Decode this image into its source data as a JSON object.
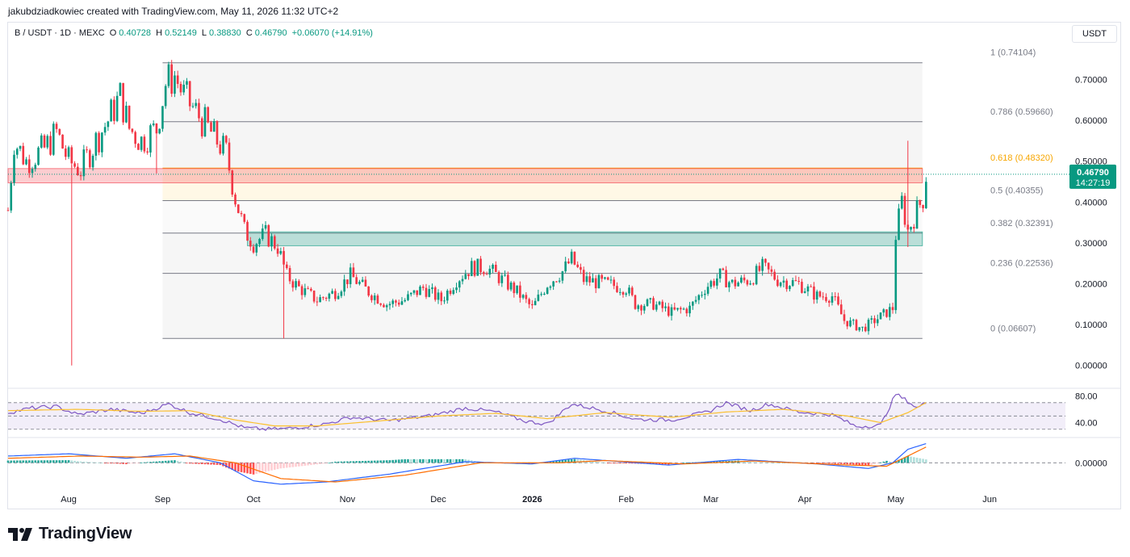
{
  "caption": "jakubdziadkowiec created with TradingView.com, May 11, 2026 11:32 UTC+2",
  "header": {
    "symbol": "B / USDT · 1D · MEXC",
    "o_label": "O",
    "o": "0.40728",
    "h_label": "H",
    "h": "0.52149",
    "l_label": "L",
    "l": "0.38830",
    "c_label": "C",
    "c": "0.46790",
    "change": "+0.06070 (+14.91%)"
  },
  "currency": "USDT",
  "brand": "TradingView",
  "colors": {
    "up": "#089981",
    "down": "#f23645",
    "rsi": "#7e57c2",
    "rsi_ma": "#fbc02d",
    "macd": "#2962ff",
    "signal": "#ff6d00",
    "fib_highlight": "#f7a600"
  },
  "chart_data": [
    {
      "type": "candlestick",
      "title": "",
      "ylim": [
        -0.05,
        0.78
      ],
      "y_ticks": [
        "0.70000",
        "0.60000",
        "0.50000",
        "0.40000",
        "0.30000",
        "0.20000",
        "0.10000",
        "0.00000"
      ],
      "y_tick_values": [
        0.7,
        0.6,
        0.5,
        0.4,
        0.3,
        0.2,
        0.1,
        0.0
      ],
      "x_labels": [
        "Aug",
        "Sep",
        "Oct",
        "Nov",
        "Dec",
        "2026",
        "Feb",
        "Mar",
        "Apr",
        "May",
        "Jun"
      ],
      "x_label_dates": [
        "2025-08-01",
        "2025-09-01",
        "2025-10-01",
        "2025-11-01",
        "2025-12-01",
        "2026-01-01",
        "2026-02-01",
        "2026-03-01",
        "2026-04-01",
        "2026-05-01",
        "2026-06-01"
      ],
      "x_range": [
        "2025-07-12",
        "2026-06-26"
      ],
      "last_price": "0.46790",
      "countdown": "14:27:19",
      "path": [
        [
          "2025-07-12",
          0.38
        ],
        [
          "2025-07-14",
          0.55
        ],
        [
          "2025-07-18",
          0.5
        ],
        [
          "2025-07-24",
          0.53
        ],
        [
          "2025-07-28",
          0.57
        ],
        [
          "2025-08-01",
          0.5
        ],
        [
          "2025-08-05",
          0.48
        ],
        [
          "2025-08-10",
          0.55
        ],
        [
          "2025-08-14",
          0.6
        ],
        [
          "2025-08-18",
          0.66
        ],
        [
          "2025-08-21",
          0.58
        ],
        [
          "2025-08-25",
          0.55
        ],
        [
          "2025-08-30",
          0.58
        ],
        [
          "2025-09-02",
          0.69
        ],
        [
          "2025-09-05",
          0.71
        ],
        [
          "2025-09-08",
          0.66
        ],
        [
          "2025-09-12",
          0.62
        ],
        [
          "2025-09-16",
          0.58
        ],
        [
          "2025-09-19",
          0.55
        ],
        [
          "2025-09-22",
          0.52
        ],
        [
          "2025-09-25",
          0.41
        ],
        [
          "2025-09-28",
          0.33
        ],
        [
          "2025-10-01",
          0.3
        ],
        [
          "2025-10-05",
          0.32
        ],
        [
          "2025-10-09",
          0.29
        ],
        [
          "2025-10-12",
          0.22
        ],
        [
          "2025-10-16",
          0.19
        ],
        [
          "2025-10-22",
          0.16
        ],
        [
          "2025-10-28",
          0.18
        ],
        [
          "2025-11-02",
          0.22
        ],
        [
          "2025-11-08",
          0.18
        ],
        [
          "2025-11-14",
          0.15
        ],
        [
          "2025-11-20",
          0.16
        ],
        [
          "2025-11-26",
          0.19
        ],
        [
          "2025-12-02",
          0.16
        ],
        [
          "2025-12-07",
          0.21
        ],
        [
          "2025-12-12",
          0.24
        ],
        [
          "2025-12-17",
          0.24
        ],
        [
          "2025-12-22",
          0.21
        ],
        [
          "2025-12-27",
          0.18
        ],
        [
          "2026-01-01",
          0.14
        ],
        [
          "2026-01-06",
          0.2
        ],
        [
          "2026-01-11",
          0.23
        ],
        [
          "2026-01-14",
          0.26
        ],
        [
          "2026-01-18",
          0.21
        ],
        [
          "2026-01-25",
          0.2
        ],
        [
          "2026-02-01",
          0.19
        ],
        [
          "2026-02-04",
          0.15
        ],
        [
          "2026-02-10",
          0.15
        ],
        [
          "2026-02-16",
          0.13
        ],
        [
          "2026-02-22",
          0.14
        ],
        [
          "2026-02-27",
          0.19
        ],
        [
          "2026-03-04",
          0.22
        ],
        [
          "2026-03-08",
          0.2
        ],
        [
          "2026-03-14",
          0.21
        ],
        [
          "2026-03-18",
          0.24
        ],
        [
          "2026-03-23",
          0.21
        ],
        [
          "2026-03-30",
          0.2
        ],
        [
          "2026-04-05",
          0.17
        ],
        [
          "2026-04-10",
          0.17
        ],
        [
          "2026-04-14",
          0.11
        ],
        [
          "2026-04-20",
          0.09
        ],
        [
          "2026-04-24",
          0.11
        ],
        [
          "2026-04-28",
          0.13
        ],
        [
          "2026-04-30",
          0.14
        ],
        [
          "2026-05-01",
          0.32
        ],
        [
          "2026-05-03",
          0.4
        ],
        [
          "2026-05-05",
          0.33
        ],
        [
          "2026-05-08",
          0.38
        ],
        [
          "2026-05-10",
          0.41
        ],
        [
          "2026-05-11",
          0.4679
        ]
      ],
      "wicks": [
        {
          "date": "2025-08-02",
          "low": 0.0,
          "high": 0.49
        },
        {
          "date": "2025-08-30",
          "low": 0.47,
          "high": 0.56
        },
        {
          "date": "2025-10-11",
          "low": 0.066,
          "high": 0.29
        },
        {
          "date": "2026-05-05",
          "low": 0.29,
          "high": 0.55
        }
      ]
    },
    {
      "type": "fibonacci",
      "start_date": "2025-09-01",
      "end_date": "2026-05-05",
      "levels": [
        {
          "ratio": "1",
          "label": "1 (0.74104)",
          "value": 0.74104
        },
        {
          "ratio": "0.786",
          "label": "0.786 (0.59660)",
          "value": 0.5966
        },
        {
          "ratio": "0.618",
          "label": "0.618 (0.48320)",
          "value": 0.4832
        },
        {
          "ratio": "0.5",
          "label": "0.5 (0.40355)",
          "value": 0.40355
        },
        {
          "ratio": "0.382",
          "label": "0.382 (0.32391)",
          "value": 0.32391
        },
        {
          "ratio": "0.236",
          "label": "0.236 (0.22536)",
          "value": 0.22536
        },
        {
          "ratio": "0",
          "label": "0 (0.06607)",
          "value": 0.06607
        }
      ],
      "highlight_ratio": "0.618"
    },
    {
      "type": "zones",
      "zones": [
        {
          "kind": "resistance",
          "color": "#f23645",
          "from": 0.447,
          "to": 0.482,
          "start_date": "2025-07-12",
          "end_date": "2026-05-11"
        },
        {
          "kind": "support",
          "color": "#089981",
          "from": 0.293,
          "to": 0.327,
          "start_date": "2025-09-29",
          "end_date": "2026-05-11"
        }
      ]
    },
    {
      "type": "line",
      "indicator": "RSI",
      "ylim": [
        20,
        88
      ],
      "y_ticks": [
        "80.00",
        "40.00"
      ],
      "y_tick_values": [
        80,
        40
      ],
      "band": [
        30,
        70
      ],
      "series": [
        {
          "values_path": [
            [
              "2025-07-12",
              55
            ],
            [
              "2025-07-20",
              62
            ],
            [
              "2025-07-28",
              64
            ],
            [
              "2025-08-04",
              52
            ],
            [
              "2025-08-15",
              60
            ],
            [
              "2025-08-25",
              54
            ],
            [
              "2025-09-03",
              68
            ],
            [
              "2025-09-10",
              55
            ],
            [
              "2025-09-20",
              45
            ],
            [
              "2025-09-28",
              32
            ],
            [
              "2025-10-05",
              30
            ],
            [
              "2025-10-12",
              31
            ],
            [
              "2025-10-25",
              38
            ],
            [
              "2025-11-02",
              48
            ],
            [
              "2025-11-15",
              43
            ],
            [
              "2025-11-28",
              50
            ],
            [
              "2025-12-10",
              62
            ],
            [
              "2025-12-20",
              56
            ],
            [
              "2025-12-30",
              42
            ],
            [
              "2026-01-06",
              38
            ],
            [
              "2026-01-14",
              68
            ],
            [
              "2026-01-25",
              58
            ],
            [
              "2026-02-04",
              45
            ],
            [
              "2026-02-16",
              44
            ],
            [
              "2026-02-28",
              56
            ],
            [
              "2026-03-06",
              70
            ],
            [
              "2026-03-14",
              58
            ],
            [
              "2026-03-20",
              68
            ],
            [
              "2026-03-30",
              56
            ],
            [
              "2026-04-10",
              52
            ],
            [
              "2026-04-18",
              34
            ],
            [
              "2026-04-26",
              36
            ],
            [
              "2026-05-01",
              83
            ],
            [
              "2026-05-05",
              72
            ],
            [
              "2026-05-08",
              62
            ],
            [
              "2026-05-11",
              70
            ]
          ]
        },
        {
          "values_path": [
            [
              "2025-07-12",
              58
            ],
            [
              "2025-08-04",
              60
            ],
            [
              "2025-08-25",
              57
            ],
            [
              "2025-09-10",
              58
            ],
            [
              "2025-09-25",
              44
            ],
            [
              "2025-10-08",
              35
            ],
            [
              "2025-10-22",
              35
            ],
            [
              "2025-11-10",
              42
            ],
            [
              "2025-12-01",
              50
            ],
            [
              "2025-12-20",
              54
            ],
            [
              "2026-01-06",
              46
            ],
            [
              "2026-01-25",
              55
            ],
            [
              "2026-02-16",
              48
            ],
            [
              "2026-03-06",
              56
            ],
            [
              "2026-03-25",
              60
            ],
            [
              "2026-04-15",
              50
            ],
            [
              "2026-04-26",
              40
            ],
            [
              "2026-05-05",
              55
            ],
            [
              "2026-05-11",
              70
            ]
          ]
        }
      ]
    },
    {
      "type": "bar",
      "indicator": "MACD",
      "ylim": [
        -0.11,
        0.105
      ],
      "y_ticks": [
        "0.00000"
      ],
      "y_tick_values": [
        0
      ],
      "series": [
        {
          "values_path": [
            [
              "2025-07-12",
              0.03
            ],
            [
              "2025-08-01",
              0.04
            ],
            [
              "2025-08-20",
              0.02
            ],
            [
              "2025-09-05",
              0.04
            ],
            [
              "2025-09-20",
              0.0
            ],
            [
              "2025-10-01",
              -0.08
            ],
            [
              "2025-10-10",
              -0.095
            ],
            [
              "2025-10-25",
              -0.085
            ],
            [
              "2025-11-15",
              -0.05
            ],
            [
              "2025-12-10",
              0.005
            ],
            [
              "2026-01-01",
              -0.005
            ],
            [
              "2026-01-15",
              0.02
            ],
            [
              "2026-02-15",
              -0.01
            ],
            [
              "2026-03-10",
              0.015
            ],
            [
              "2026-04-05",
              -0.005
            ],
            [
              "2026-04-22",
              -0.025
            ],
            [
              "2026-04-30",
              0.0
            ],
            [
              "2026-05-05",
              0.06
            ],
            [
              "2026-05-11",
              0.085
            ]
          ]
        },
        {
          "values_path": [
            [
              "2025-07-12",
              0.02
            ],
            [
              "2025-08-05",
              0.03
            ],
            [
              "2025-08-25",
              0.025
            ],
            [
              "2025-09-10",
              0.03
            ],
            [
              "2025-09-25",
              0.0
            ],
            [
              "2025-10-10",
              -0.07
            ],
            [
              "2025-10-28",
              -0.085
            ],
            [
              "2025-11-20",
              -0.055
            ],
            [
              "2025-12-15",
              0.0
            ],
            [
              "2026-01-10",
              0.0
            ],
            [
              "2026-01-25",
              0.01
            ],
            [
              "2026-02-20",
              -0.005
            ],
            [
              "2026-03-15",
              0.008
            ],
            [
              "2026-04-15",
              -0.01
            ],
            [
              "2026-04-28",
              -0.015
            ],
            [
              "2026-05-05",
              0.03
            ],
            [
              "2026-05-11",
              0.07
            ]
          ]
        }
      ]
    }
  ]
}
